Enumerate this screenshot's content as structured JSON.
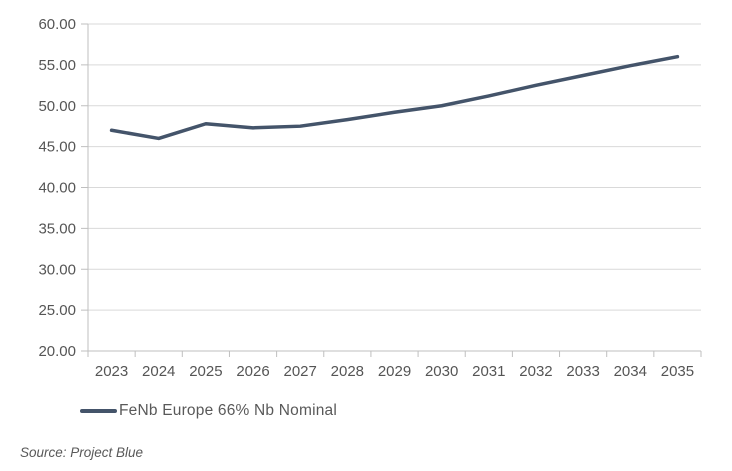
{
  "chart": {
    "source_caption": "Source: Project Blue",
    "colors": {
      "line": "#44546A",
      "grid": "#D9D9D9",
      "axis": "#BFBFBF",
      "tick_label": "#555555",
      "legend_text": "#595959",
      "background": "#FFFFFF"
    }
  },
  "chart_data": {
    "type": "line",
    "title": "",
    "xlabel": "",
    "ylabel": "",
    "categories": [
      "2023",
      "2024",
      "2025",
      "2026",
      "2027",
      "2028",
      "2029",
      "2030",
      "2031",
      "2032",
      "2033",
      "2034",
      "2035"
    ],
    "series": [
      {
        "name": "FeNb Europe 66% Nb Nominal",
        "values": [
          47.0,
          46.0,
          47.8,
          47.3,
          47.5,
          48.3,
          49.2,
          50.0,
          51.2,
          52.5,
          53.7,
          54.9,
          56.0
        ]
      }
    ],
    "ylim": [
      20,
      60
    ],
    "ytick_step": 5,
    "ytick_labels": [
      "20.00",
      "25.00",
      "30.00",
      "35.00",
      "40.00",
      "45.00",
      "50.00",
      "55.00",
      "60.00"
    ],
    "grid": true,
    "legend_position": "bottom-left"
  }
}
